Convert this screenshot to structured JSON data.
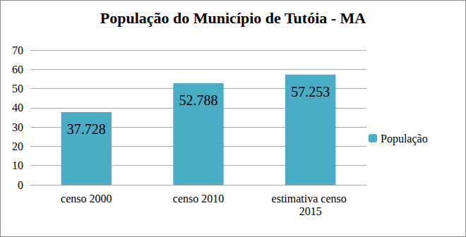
{
  "chart_data": {
    "type": "bar",
    "title": "População do Município de Tutóia - MA",
    "categories": [
      "censo 2000",
      "censo 2010",
      "estimativa censo 2015"
    ],
    "series": [
      {
        "name": "População",
        "color": "#4bacc6",
        "values": [
          37.728,
          52.788,
          57.253
        ]
      }
    ],
    "ylim": [
      0,
      70
    ],
    "yticks": [
      0,
      10,
      20,
      30,
      40,
      50,
      60,
      70
    ],
    "grid": true,
    "legend": "right",
    "data_labels": true
  }
}
